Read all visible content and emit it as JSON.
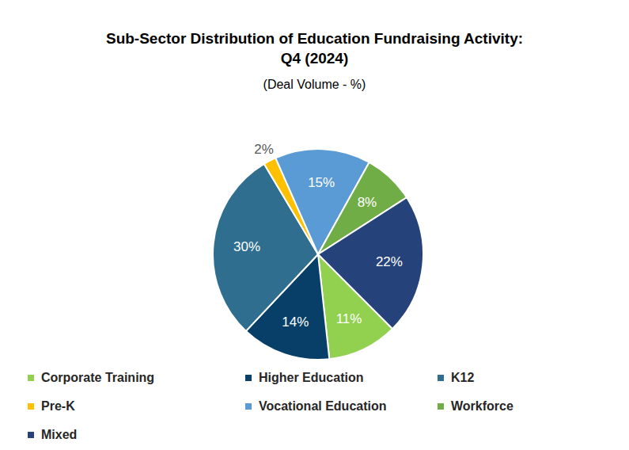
{
  "chart_data": {
    "type": "pie",
    "title": "Sub-Sector Distribution of Education Fundraising Activity: Q4 (2024)",
    "subtitle": "(Deal Volume - %)",
    "categories": [
      "Corporate Training",
      "Higher Education",
      "K12",
      "Pre-K",
      "Vocational Education",
      "Workforce",
      "Mixed"
    ],
    "values": [
      11,
      14,
      30,
      2,
      15,
      8,
      22
    ],
    "value_labels": [
      "11%",
      "14%",
      "30%",
      "2%",
      "15%",
      "8%",
      "22%"
    ],
    "colors": [
      "#92D050",
      "#073F68",
      "#2F6E8E",
      "#FFC000",
      "#5B9BD5",
      "#70AD47",
      "#25437A"
    ],
    "data_labels": true,
    "legend": "bottom"
  }
}
